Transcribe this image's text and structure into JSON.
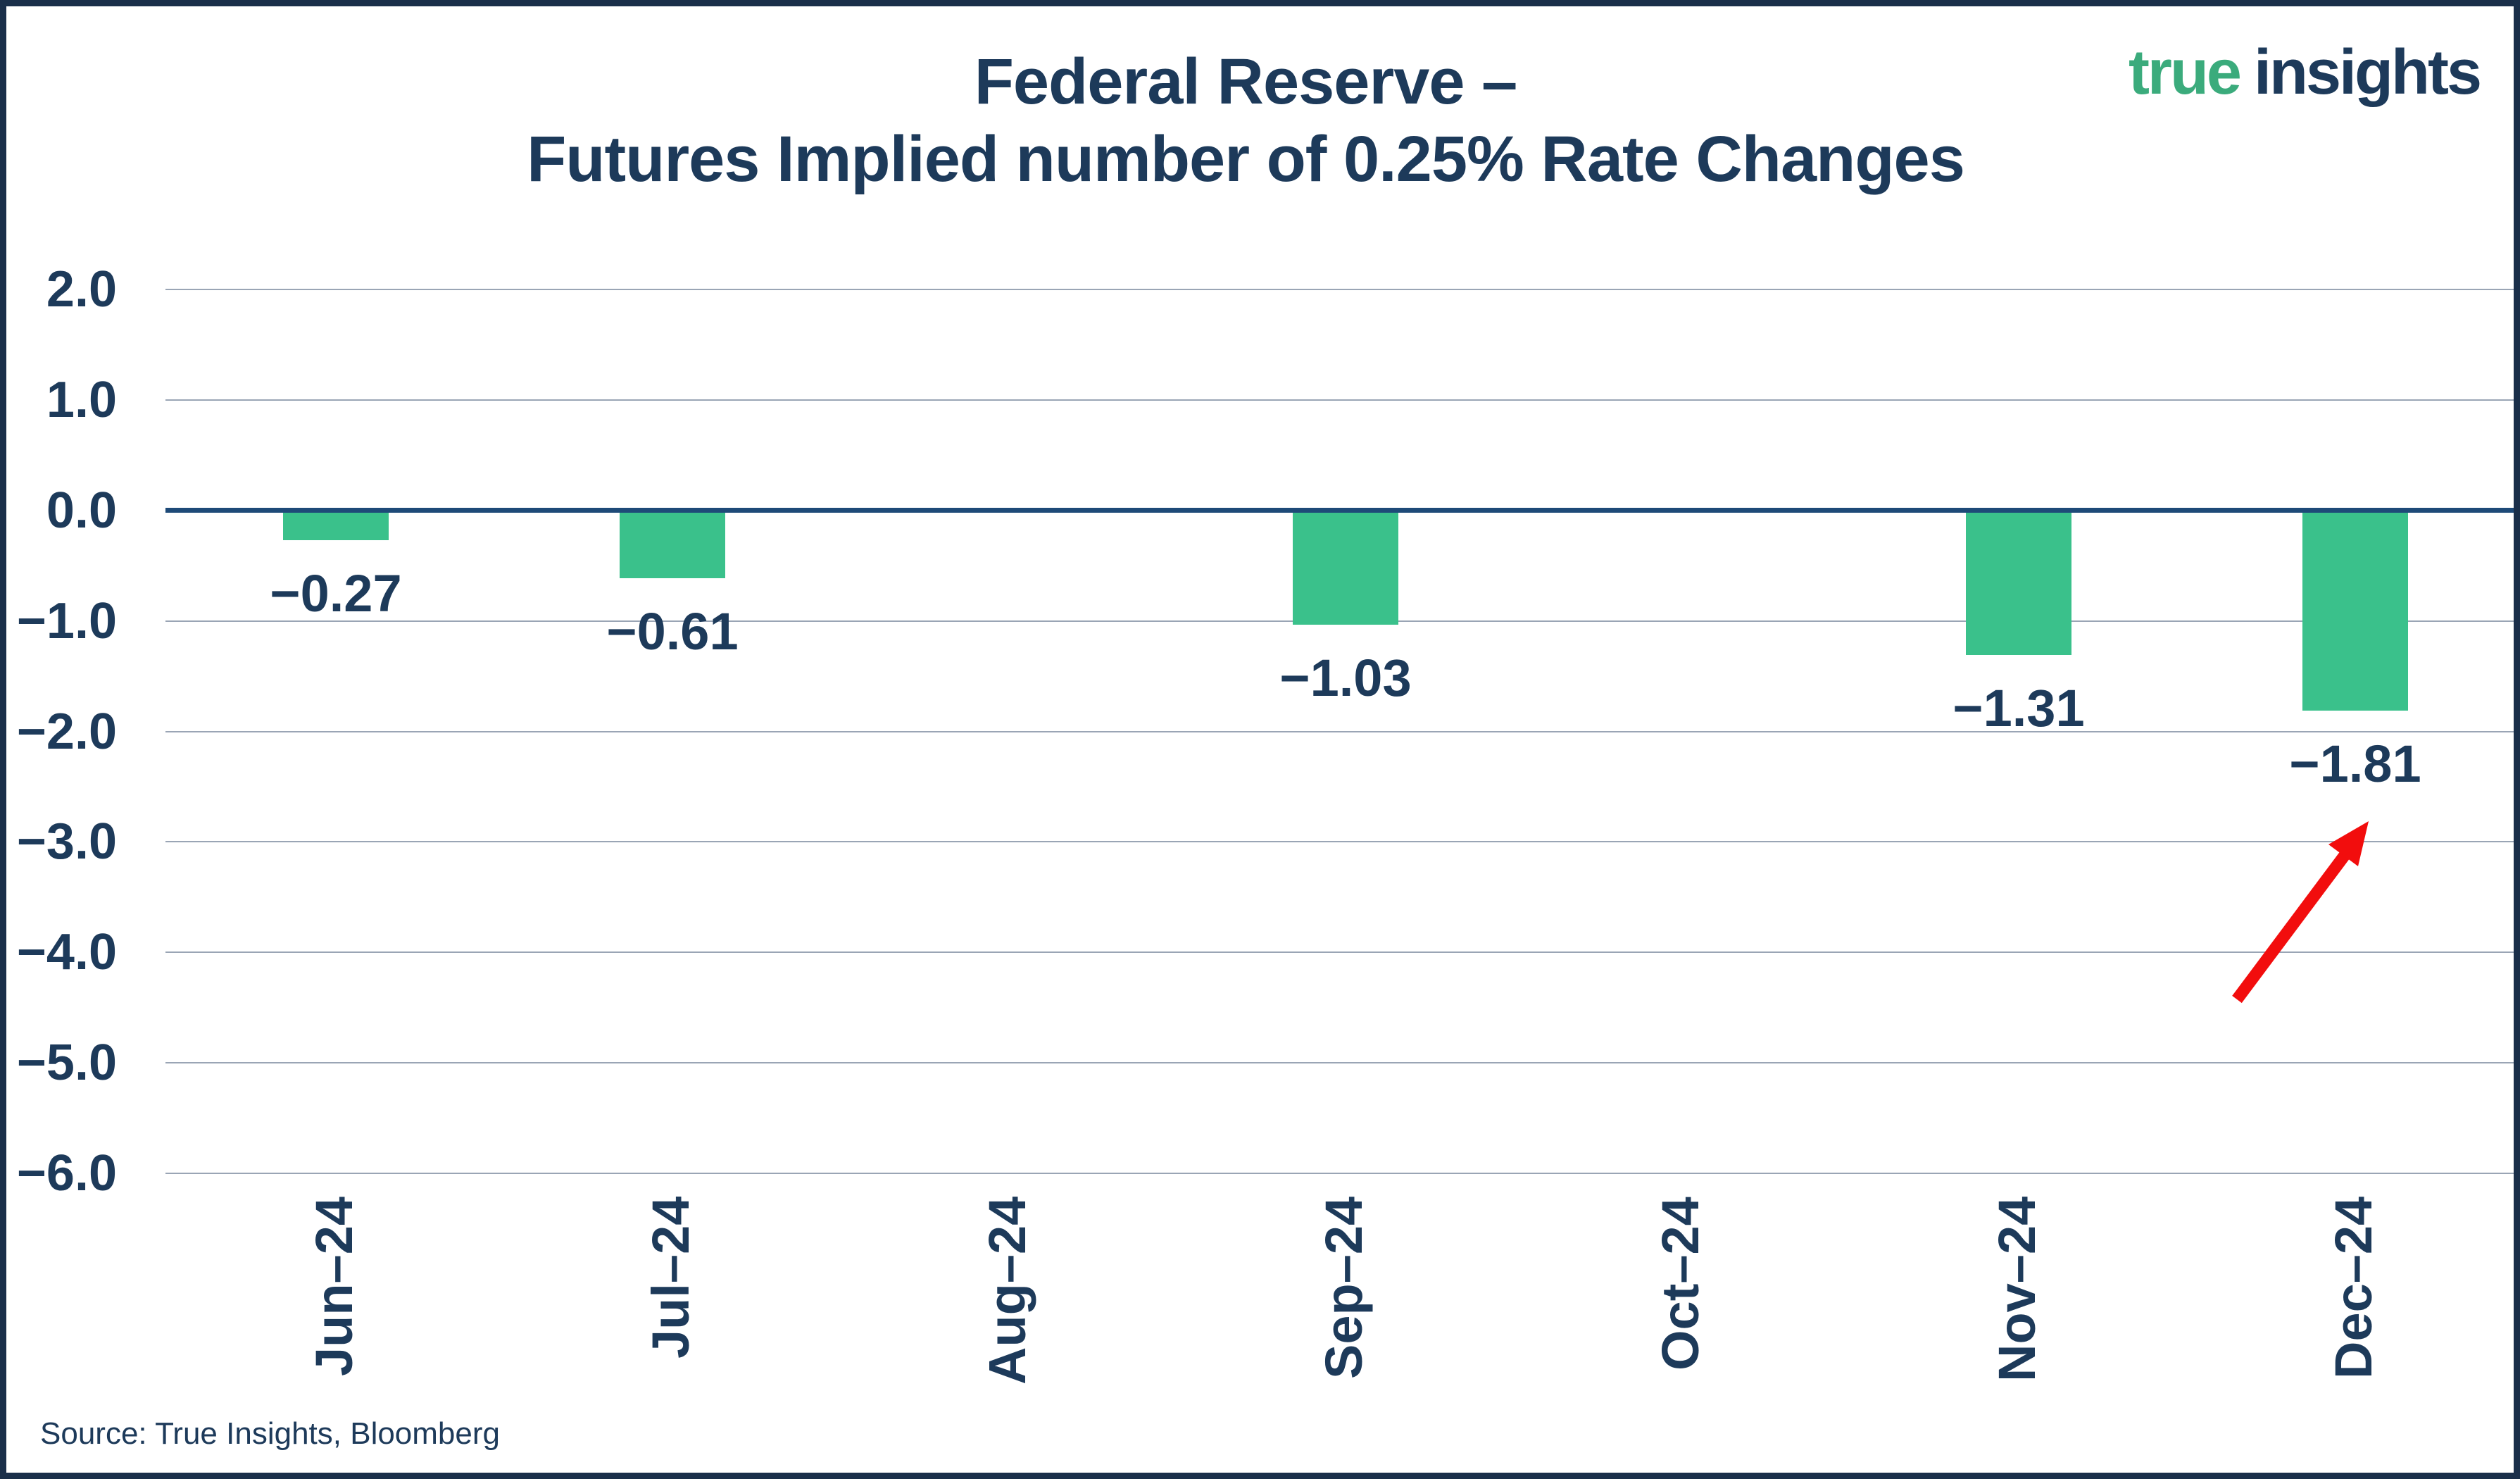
{
  "page": {
    "title_line1": "Federal Reserve –",
    "title_line2": "Futures Implied number of 0.25% Rate Changes",
    "logo": {
      "part1": "true",
      "part2": "insights"
    },
    "source": "Source: True Insights, Bloomberg",
    "colors": {
      "navy": "#1d3a5a",
      "border_navy": "#1a2f4a",
      "logo_green": "#3bab7c"
    }
  },
  "chart_data": {
    "type": "bar",
    "title": "Federal Reserve – Futures Implied number of 0.25% Rate Changes",
    "categories": [
      "Jun–24",
      "Jul–24",
      "Aug–24",
      "Sep–24",
      "Oct–24",
      "Nov–24",
      "Dec–24"
    ],
    "values": [
      -0.27,
      -0.61,
      null,
      -1.03,
      null,
      -1.31,
      -1.81
    ],
    "bar_labels": [
      "−0.27",
      "−0.61",
      "",
      "−1.03",
      "",
      "−1.31",
      "−1.81"
    ],
    "y_ticks": [
      2.0,
      1.0,
      0.0,
      -1.0,
      -2.0,
      -3.0,
      -4.0,
      -5.0,
      -6.0
    ],
    "y_tick_labels": [
      "2.0",
      "1.0",
      "0.0",
      "−1.0",
      "−2.0",
      "−3.0",
      "−4.0",
      "−5.0",
      "−6.0"
    ],
    "ylim": [
      -6.0,
      2.0
    ],
    "xlabel": "",
    "ylabel": "",
    "grid": true,
    "legend": false,
    "bar_color": "#3ac18b",
    "zero_line_color": "#1e4a78",
    "grid_color": "#9aa5b5",
    "annotation_arrow": {
      "points_to": "Dec–24",
      "direction": "up-right",
      "color": "#f20d0d"
    }
  }
}
